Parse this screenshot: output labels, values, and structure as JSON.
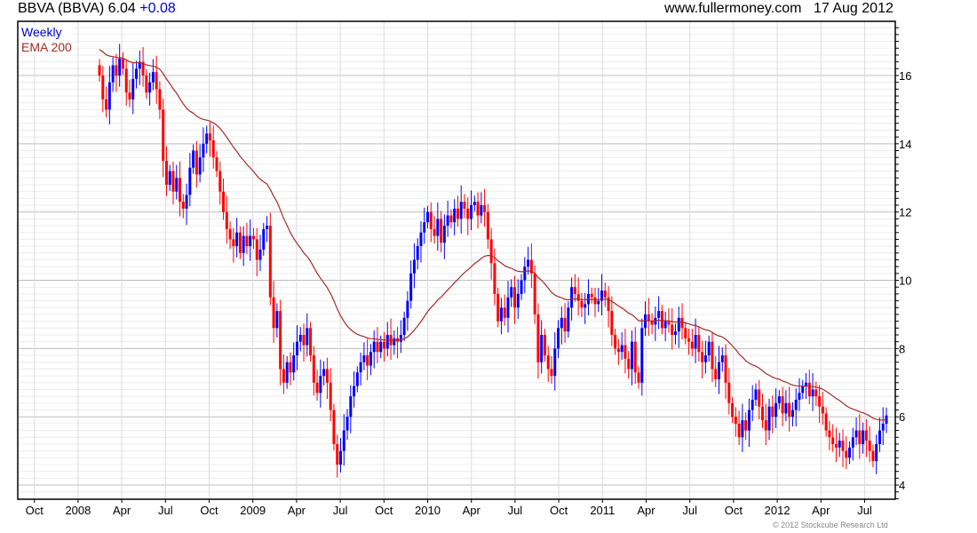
{
  "header": {
    "symbol_title": "BBVA (BBVA) 6.04",
    "change": "+0.08",
    "website": "www.fullermoney.com",
    "date": "17 Aug 2012"
  },
  "footer": {
    "copyright": "© 2012 Stockcube Research Ltd"
  },
  "colors": {
    "up": "#0000ff",
    "down": "#ff0000",
    "ema": "#a52a2a",
    "grid_major": "#bdbdbd",
    "grid_minor": "#ececec"
  },
  "chart_data": {
    "type": "candlestick",
    "title": "BBVA (BBVA) 6.04 +0.08",
    "legend": [
      "Weekly",
      "EMA 200"
    ],
    "legend_placement": "top-left",
    "ema_period": 200,
    "ema_seed": 16.8,
    "first_open": 16.3,
    "x_tick_labels": [
      "Oct",
      "2008",
      "Apr",
      "Jul",
      "Oct",
      "2009",
      "Apr",
      "Jul",
      "Oct",
      "2010",
      "Apr",
      "Jul",
      "Oct",
      "2011",
      "Apr",
      "Jul",
      "Oct",
      "2012",
      "Apr",
      "Jul"
    ],
    "y_tick_labels": [
      "4",
      "6",
      "8",
      "10",
      "12",
      "14",
      "16"
    ],
    "ylim": [
      3.6,
      17.6
    ],
    "grid": true,
    "close": [
      16.0,
      15.3,
      15.0,
      15.8,
      16.3,
      16.0,
      16.5,
      16.2,
      15.5,
      15.3,
      15.9,
      16.2,
      16.4,
      16.0,
      15.5,
      15.8,
      16.1,
      15.6,
      15.0,
      13.5,
      12.8,
      13.2,
      12.6,
      13.0,
      12.3,
      12.1,
      12.5,
      13.3,
      13.8,
      13.1,
      13.6,
      14.0,
      14.3,
      14.1,
      13.6,
      13.2,
      12.6,
      12.0,
      11.5,
      11.2,
      11.0,
      11.4,
      10.8,
      11.3,
      11.0,
      11.3,
      11.2,
      10.6,
      10.9,
      11.5,
      11.6,
      9.5,
      8.6,
      9.1,
      7.4,
      7.0,
      7.6,
      7.3,
      7.8,
      8.2,
      8.4,
      8.1,
      8.6,
      7.8,
      7.0,
      6.7,
      7.2,
      7.4,
      7.0,
      6.2,
      5.2,
      4.6,
      5.0,
      5.6,
      6.0,
      6.6,
      6.9,
      7.3,
      7.6,
      7.8,
      7.5,
      7.9,
      8.2,
      7.9,
      8.2,
      8.0,
      8.4,
      8.1,
      8.3,
      8.2,
      8.4,
      8.9,
      9.4,
      10.2,
      10.6,
      11.0,
      11.4,
      11.7,
      12.0,
      11.5,
      11.3,
      11.8,
      11.1,
      11.6,
      11.9,
      11.7,
      12.1,
      11.8,
      12.3,
      12.1,
      11.8,
      12.2,
      12.3,
      11.9,
      12.2,
      12.0,
      11.2,
      10.5,
      9.6,
      8.8,
      9.2,
      8.9,
      9.5,
      9.8,
      9.2,
      9.6,
      10.0,
      10.4,
      10.6,
      10.2,
      9.0,
      7.6,
      8.4,
      7.8,
      7.4,
      7.2,
      8.0,
      8.6,
      8.9,
      8.5,
      9.2,
      9.8,
      9.6,
      9.4,
      9.2,
      9.3,
      9.6,
      9.5,
      9.3,
      9.4,
      9.7,
      9.5,
      9.1,
      8.4,
      8.0,
      7.9,
      8.1,
      7.7,
      7.4,
      8.2,
      7.3,
      7.0,
      8.6,
      9.0,
      8.8,
      8.7,
      8.9,
      9.1,
      8.6,
      8.8,
      8.7,
      8.4,
      8.5,
      8.9,
      8.6,
      8.3,
      8.2,
      8.0,
      8.4,
      7.9,
      7.6,
      7.8,
      8.2,
      7.4,
      7.1,
      7.6,
      7.8,
      7.0,
      6.4,
      6.0,
      5.8,
      5.4,
      5.9,
      5.6,
      6.2,
      6.5,
      6.8,
      6.3,
      5.9,
      5.6,
      6.3,
      6.0,
      6.4,
      6.6,
      6.1,
      6.4,
      6.0,
      6.2,
      6.5,
      6.7,
      6.9,
      7.0,
      6.6,
      6.8,
      6.6,
      6.3,
      6.1,
      5.6,
      5.4,
      5.2,
      5.1,
      5.3,
      5.0,
      4.8,
      5.1,
      5.4,
      5.6,
      5.2,
      5.6,
      5.3,
      5.0,
      4.7,
      5.2,
      5.6,
      5.8,
      6.04
    ]
  }
}
